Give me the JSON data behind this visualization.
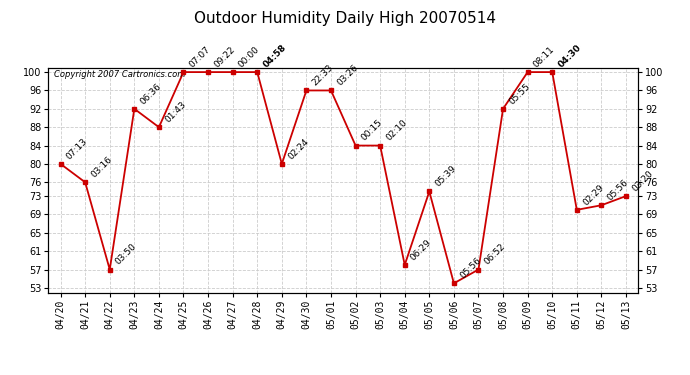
{
  "title": "Outdoor Humidity Daily High 20070514",
  "copyright": "Copyright 2007 Cartronics.com",
  "dates": [
    "04/20",
    "04/21",
    "04/22",
    "04/23",
    "04/24",
    "04/25",
    "04/26",
    "04/27",
    "04/28",
    "04/29",
    "04/30",
    "05/01",
    "05/02",
    "05/03",
    "05/04",
    "05/05",
    "05/06",
    "05/07",
    "05/08",
    "05/09",
    "05/10",
    "05/11",
    "05/12",
    "05/13"
  ],
  "values": [
    80,
    76,
    57,
    92,
    88,
    100,
    100,
    100,
    100,
    80,
    96,
    96,
    84,
    84,
    58,
    74,
    54,
    57,
    92,
    100,
    100,
    70,
    71,
    73
  ],
  "labels": [
    "07:13",
    "03:16",
    "03:50",
    "06:36",
    "01:43",
    "07:07",
    "09:22",
    "00:00",
    "04:58",
    "02:24",
    "22:33",
    "03:26",
    "00:15",
    "02:10",
    "06:29",
    "05:39",
    "05:56",
    "06:52",
    "05:55",
    "08:11",
    "04:30",
    "02:29",
    "05:56",
    "03:20"
  ],
  "bold_labels": [
    "04:58",
    "04:30"
  ],
  "ylim_min": 52,
  "ylim_max": 101,
  "yticks": [
    53,
    57,
    61,
    65,
    69,
    73,
    76,
    80,
    84,
    88,
    92,
    96,
    100
  ],
  "line_color": "#cc0000",
  "marker_color": "#cc0000",
  "background_color": "#ffffff",
  "grid_color": "#cccccc",
  "title_fontsize": 11,
  "label_fontsize": 6.5,
  "axis_tick_fontsize": 7
}
